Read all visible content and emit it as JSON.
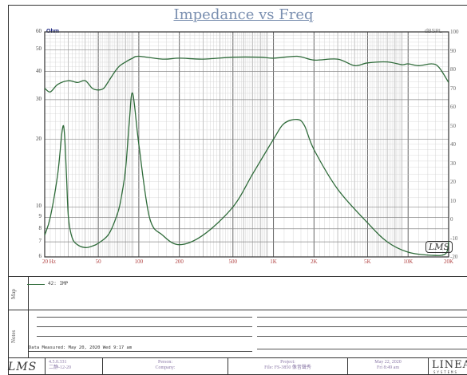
{
  "chart_data": {
    "type": "line",
    "title": "Impedance vs Freq",
    "left_axis": {
      "unit": "Ohm",
      "scale": "log",
      "range": [
        6,
        60
      ],
      "ticks": [
        6,
        7,
        8,
        9,
        10,
        20,
        30,
        40,
        50,
        60
      ]
    },
    "right_axis": {
      "unit": "dBSPL",
      "scale": "linear",
      "range": [
        -20,
        100
      ],
      "ticks": [
        100,
        90,
        80,
        70,
        60,
        50,
        40,
        30,
        20,
        10,
        0,
        -10,
        -20
      ]
    },
    "x_axis": {
      "scale": "log",
      "range": [
        20,
        20000
      ],
      "ticks": [
        "20 Hz",
        "50",
        "100",
        "200",
        "500",
        "1K",
        "2K",
        "5K",
        "10K",
        "20K"
      ],
      "tick_values": [
        20,
        50,
        100,
        200,
        500,
        1000,
        2000,
        5000,
        10000,
        20000
      ]
    },
    "grid": true,
    "series": [
      {
        "name": "42: IMP",
        "axis": "left",
        "x": [
          20,
          22,
          25,
          27,
          28,
          29,
          30,
          32,
          35,
          40,
          45,
          50,
          60,
          70,
          75,
          80,
          85,
          90,
          100,
          120,
          150,
          200,
          300,
          500,
          700,
          1000,
          1200,
          1500,
          1700,
          2000,
          3000,
          5000,
          7000,
          10000,
          15000,
          19000,
          20000
        ],
        "y": [
          7.5,
          9,
          14,
          22,
          21.5,
          14,
          9,
          7.3,
          6.8,
          6.6,
          6.7,
          6.9,
          7.6,
          9.5,
          11.5,
          15,
          24,
          32,
          19,
          9,
          7.5,
          6.8,
          7.5,
          10,
          14,
          20,
          23.5,
          24.5,
          23,
          18,
          12,
          8.5,
          7,
          6.3,
          6.1,
          6.2,
          7
        ]
      },
      {
        "axis": "right",
        "x": [
          20,
          22,
          25,
          30,
          35,
          40,
          45,
          50,
          55,
          60,
          70,
          80,
          90,
          100,
          150,
          200,
          300,
          500,
          800,
          1000,
          1500,
          2000,
          3000,
          4000,
          5000,
          7000,
          9000,
          10000,
          12000,
          15000,
          17000,
          20000
        ],
        "y": [
          70,
          68,
          72,
          74,
          73,
          74,
          70,
          69,
          70,
          74,
          81,
          84,
          86,
          87,
          85.5,
          86,
          85.5,
          86.5,
          86.5,
          86,
          87,
          85,
          85.5,
          82,
          83.5,
          84,
          82.5,
          83,
          82,
          83,
          81,
          73
        ]
      }
    ]
  },
  "sidebar": {
    "map_label": "Map",
    "notes_label": "Notes"
  },
  "footer": {
    "date_measured": "Data Measured: May 20, 2020  Wed  9:17 am",
    "version_line1": "4.5.0.331",
    "version_line2": "二静-12-20",
    "person_line1": "Person:",
    "person_line2": "Company:",
    "project_line1": "Project:",
    "project_line2": "File: FS-3850  像音聲秀",
    "date_line1": "May 22, 2020",
    "date_line2": "Fri  8:49 am",
    "lms_text": "LMS",
    "linear_text": "LINEAR",
    "systems_text": "SYSTEMS"
  },
  "colors": {
    "trace": "#2f6b3a",
    "grid": "#9a9a9a",
    "title": "#7a8fb0",
    "xtick": "#b04040"
  }
}
